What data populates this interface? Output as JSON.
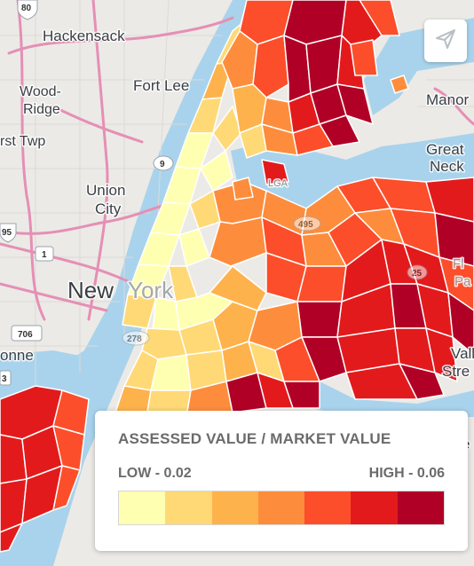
{
  "map": {
    "place_labels": {
      "hackensack": "Hackensack",
      "fort_lee": "Fort Lee",
      "wood_ridge_1": "Wood-",
      "wood_ridge_2": "Ridge",
      "first_twp": "rst Twp",
      "union_city_1": "Union",
      "union_city_2": "City",
      "new_york_1": "New",
      "new_york_2": "York",
      "bayonne": "onne",
      "manor": "Manor",
      "great_neck_1": "Great",
      "great_neck_2": "Neck",
      "lga": "LGA",
      "valley_stream_1": "Vall",
      "valley_stream_2": "Stre",
      "floral_park_1": "Fl",
      "floral_park_2": "Pa",
      "edge_e": "e"
    },
    "road_shields": {
      "i80": "80",
      "i95": "95",
      "us1": "1",
      "rt9": "9",
      "rt706": "706",
      "rt3": "3",
      "i278": "278",
      "i495": "495",
      "i25": "25"
    }
  },
  "share_button": {
    "icon": "paper-plane-icon"
  },
  "legend": {
    "title": "ASSESSED VALUE / MARKET VALUE",
    "low_label": "LOW - 0.02",
    "high_label": "HIGH - 0.06",
    "color_scale": [
      "#ffffb2",
      "#fed976",
      "#feb24c",
      "#fd8d3c",
      "#fc4e2a",
      "#e31a1c",
      "#b10026"
    ]
  }
}
